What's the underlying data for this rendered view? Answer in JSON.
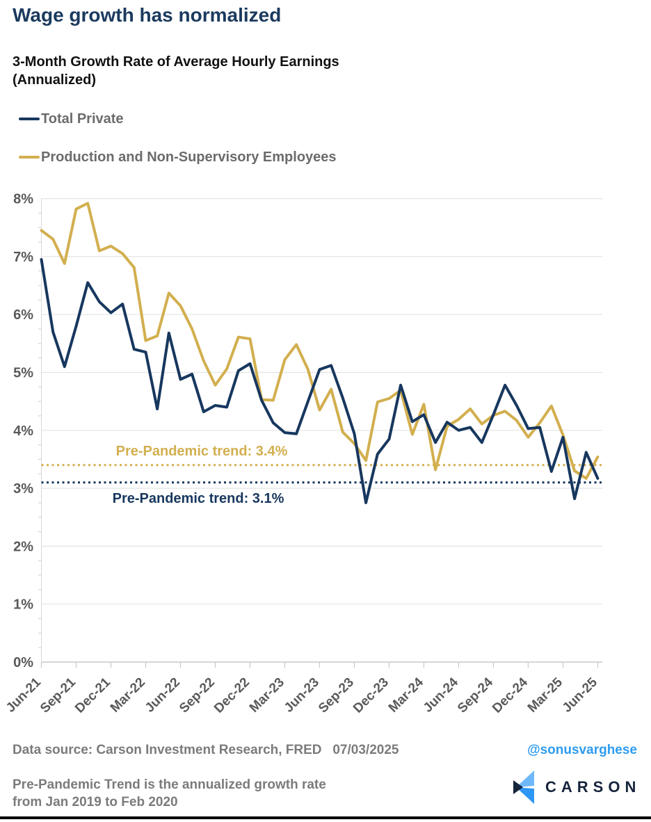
{
  "title": "Wage growth has normalized",
  "subtitle_line1": "3-Month Growth Rate of Average Hourly Earnings",
  "subtitle_line2": "(Annualized)",
  "legend": [
    {
      "label": "Total Private",
      "color": "#17375E"
    },
    {
      "label": "Production and Non-Supervisory Employees",
      "color": "#D2AF4F"
    }
  ],
  "colors": {
    "total_private": "#17375E",
    "production": "#D2AF4F",
    "axis_text": "#595959",
    "gridline": "#e4e4e4",
    "axis_line": "#c9c9c9"
  },
  "chart_data": {
    "type": "line",
    "title": "3-Month Growth Rate of Average Hourly Earnings (Annualized)",
    "x_tick_labels": [
      "Jun-21",
      "Sep-21",
      "Dec-21",
      "Mar-22",
      "Jun-22",
      "Sep-22",
      "Dec-22",
      "Mar-23",
      "Jun-23",
      "Sep-23",
      "Dec-23",
      "Mar-24",
      "Jun-24",
      "Sep-24",
      "Dec-24",
      "Mar-25",
      "Jun-25"
    ],
    "months_per_point": 1,
    "points_per_tick": 3,
    "ylim": [
      0,
      8
    ],
    "y_tick_labels": [
      "0%",
      "1%",
      "2%",
      "3%",
      "4%",
      "5%",
      "6%",
      "7%",
      "8%"
    ],
    "grid": true,
    "legend_position": "top-left",
    "series": [
      {
        "name": "Total Private",
        "color": "#17375E",
        "values": [
          6.95,
          5.7,
          5.1,
          5.8,
          6.55,
          6.22,
          6.03,
          6.18,
          5.4,
          5.35,
          4.37,
          5.68,
          4.88,
          4.97,
          4.32,
          4.43,
          4.4,
          5.03,
          5.15,
          4.52,
          4.13,
          3.96,
          3.94,
          4.5,
          5.05,
          5.12,
          4.56,
          3.94,
          2.75,
          3.59,
          3.85,
          4.78,
          4.15,
          4.27,
          3.79,
          4.14,
          4.0,
          4.05,
          3.79,
          4.27,
          4.78,
          4.43,
          4.03,
          4.05,
          3.29,
          3.88,
          2.82,
          3.62,
          3.17
        ]
      },
      {
        "name": "Production and Non-Supervisory Employees",
        "color": "#D2AF4F",
        "values": [
          7.45,
          7.3,
          6.88,
          7.82,
          7.92,
          7.1,
          7.18,
          7.05,
          6.81,
          5.55,
          5.63,
          6.37,
          6.15,
          5.75,
          5.2,
          4.78,
          5.06,
          5.61,
          5.58,
          4.53,
          4.52,
          5.22,
          5.48,
          5.05,
          4.35,
          4.71,
          3.97,
          3.77,
          3.48,
          4.49,
          4.55,
          4.69,
          3.93,
          4.45,
          3.32,
          4.07,
          4.19,
          4.37,
          4.11,
          4.26,
          4.33,
          4.17,
          3.88,
          4.13,
          4.42,
          3.92,
          3.3,
          3.17,
          3.54
        ]
      }
    ],
    "trend_lines": [
      {
        "label": "Pre-Pandemic trend: 3.4%",
        "value": 3.4,
        "color": "#D2AF4F"
      },
      {
        "label": "Pre-Pandemic trend: 3.1%",
        "value": 3.1,
        "color": "#17375E"
      }
    ]
  },
  "footer": {
    "source": "Data source: Carson Investment Research, FRED   07/03/2025",
    "handle": "@sonusvarghese",
    "note_line1": "Pre-Pandemic Trend is the annualized growth rate",
    "note_line2": "from Jan 2019 to Feb 2020",
    "brand": "CARSON"
  }
}
